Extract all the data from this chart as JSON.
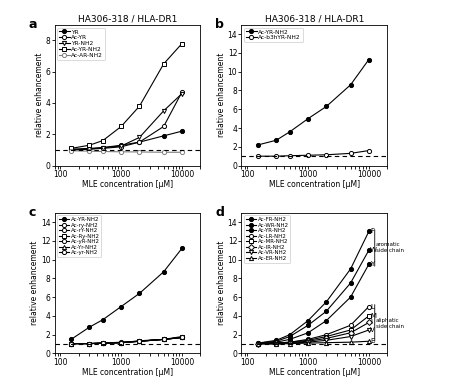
{
  "title_a": "HA306-318 / HLA-DR1",
  "title_b": "HA306-318 / HLA-DR1",
  "xlabel": "MLE concentration [μM]",
  "ylabel": "relative enhancement",
  "spont_loading": 1.0,
  "x_vals": [
    150,
    300,
    500,
    1000,
    2000,
    5000,
    10000
  ],
  "panel_a": {
    "YR": [
      1.05,
      1.1,
      1.15,
      1.3,
      1.5,
      1.9,
      2.2
    ],
    "Ac-YR": [
      1.0,
      1.05,
      1.1,
      1.2,
      1.5,
      2.5,
      4.7
    ],
    "YR-NH2": [
      1.0,
      1.05,
      1.15,
      1.25,
      1.8,
      3.5,
      4.6
    ],
    "Ac-YR-NH2": [
      1.1,
      1.3,
      1.6,
      2.5,
      3.8,
      6.5,
      7.8
    ],
    "Ac-AR-NH2": [
      0.95,
      0.92,
      0.9,
      0.88,
      0.87,
      0.85,
      0.85
    ]
  },
  "panel_b": {
    "Ac-YR-NH2": [
      2.2,
      2.7,
      3.6,
      5.0,
      6.3,
      8.6,
      11.3
    ],
    "Ac-b3hYR-NH2": [
      1.0,
      1.0,
      1.05,
      1.1,
      1.15,
      1.3,
      1.6
    ]
  },
  "panel_c": {
    "Ac-YR-NH2": [
      1.5,
      2.8,
      3.6,
      5.0,
      6.4,
      8.7,
      11.2
    ],
    "Ac-ry-NH2": [
      1.05,
      1.05,
      1.1,
      1.2,
      1.3,
      1.5,
      1.7
    ],
    "Ac-rY-NH2": [
      1.05,
      1.05,
      1.1,
      1.15,
      1.3,
      1.5,
      1.7
    ],
    "Ac-Ry-NH2": [
      1.05,
      1.05,
      1.1,
      1.15,
      1.3,
      1.5,
      1.7
    ],
    "Ac-yR-NH2": [
      1.05,
      1.05,
      1.1,
      1.15,
      1.3,
      1.5,
      1.7
    ],
    "Ac-Yr-NH2": [
      1.05,
      1.05,
      1.1,
      1.15,
      1.35,
      1.5,
      1.8
    ],
    "Ac-yr-NH2": [
      1.05,
      1.05,
      1.1,
      1.15,
      1.3,
      1.5,
      1.7
    ]
  },
  "panel_d": {
    "Ac-FR-NH2": [
      1.1,
      1.4,
      2.0,
      3.5,
      5.5,
      9.0,
      13.0
    ],
    "Ac-WR-NH2": [
      1.1,
      1.3,
      1.8,
      3.0,
      4.5,
      7.5,
      11.0
    ],
    "Ac-YR-NH2": [
      1.05,
      1.2,
      1.5,
      2.2,
      3.5,
      6.0,
      9.5
    ],
    "Ac-LR-NH2": [
      1.05,
      1.1,
      1.2,
      1.5,
      2.0,
      3.0,
      5.0
    ],
    "Ac-MR-NH2": [
      1.05,
      1.1,
      1.2,
      1.4,
      1.8,
      2.5,
      4.0
    ],
    "Ac-IR-NH2": [
      1.05,
      1.1,
      1.15,
      1.3,
      1.6,
      2.2,
      3.3
    ],
    "Ac-VR-NH2": [
      1.05,
      1.05,
      1.1,
      1.2,
      1.4,
      1.8,
      2.5
    ],
    "Ac-ER-NH2": [
      1.0,
      1.0,
      1.05,
      1.1,
      1.15,
      1.2,
      1.3
    ]
  },
  "label_d_aromatic": [
    "F",
    "W",
    "Y"
  ],
  "label_d_aliphatic": [
    "L",
    "M",
    "I",
    "V",
    "E"
  ],
  "background": "#ffffff"
}
